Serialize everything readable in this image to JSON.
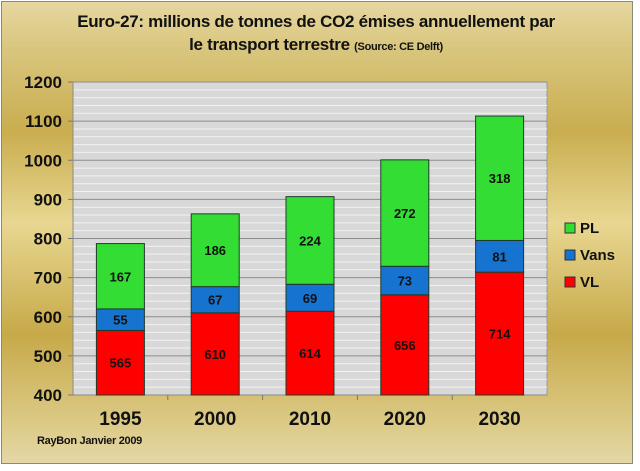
{
  "title_line1": "Euro-27: millions de tonnes de CO2 émises annuellement par",
  "title_line2": "le transport terrestre",
  "title_source": "(Source: CE Delft)",
  "credit": "RayBon Janvier 2009",
  "chart_data": {
    "type": "bar",
    "stacked": true,
    "title": "Euro-27: millions de tonnes de CO2 émises annuellement par le transport terrestre (Source: CE Delft)",
    "xlabel": "",
    "ylabel": "",
    "categories": [
      "1995",
      "2000",
      "2010",
      "2020",
      "2030"
    ],
    "series": [
      {
        "name": "VL",
        "color": "#ff0000",
        "values": [
          565,
          610,
          614,
          656,
          714
        ]
      },
      {
        "name": "Vans",
        "color": "#1673d0",
        "values": [
          55,
          67,
          69,
          73,
          81
        ]
      },
      {
        "name": "PL",
        "color": "#33dd33",
        "values": [
          167,
          186,
          224,
          272,
          318
        ]
      }
    ],
    "ylim": [
      400,
      1200
    ],
    "yticks": [
      400,
      500,
      600,
      700,
      800,
      900,
      1000,
      1100,
      1200
    ],
    "grid": true,
    "legend": {
      "position": "right",
      "entries": [
        "PL",
        "Vans",
        "VL"
      ]
    },
    "plot_background": "#d8d8d8"
  }
}
